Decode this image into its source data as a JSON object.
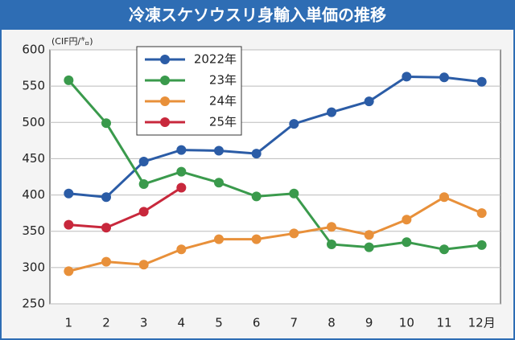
{
  "chart_data": {
    "type": "line",
    "title": "冷凍スケソウスリ身輸入単価の推移",
    "y_label": "(CIF円/㌔)",
    "categories": [
      "1",
      "2",
      "3",
      "4",
      "5",
      "6",
      "7",
      "8",
      "9",
      "10",
      "11",
      "12月"
    ],
    "series": [
      {
        "name": "2022年",
        "color": "#2b5ca6",
        "values": [
          402,
          397,
          446,
          462,
          461,
          457,
          498,
          514,
          529,
          563,
          562,
          556
        ]
      },
      {
        "name": "23年",
        "color": "#3a9a4c",
        "values": [
          558,
          499,
          415,
          432,
          417,
          398,
          402,
          332,
          328,
          335,
          325,
          331
        ]
      },
      {
        "name": "24年",
        "color": "#e8903a",
        "values": [
          295,
          308,
          304,
          325,
          339,
          339,
          347,
          356,
          345,
          366,
          397,
          375
        ]
      },
      {
        "name": "25年",
        "color": "#c8283c",
        "values": [
          359,
          355,
          377,
          410,
          null,
          null,
          null,
          null,
          null,
          null,
          null,
          null
        ]
      }
    ],
    "ylim": [
      250,
      600
    ],
    "yticks": [
      250,
      300,
      350,
      400,
      450,
      500,
      550,
      600
    ],
    "grid": true,
    "legend": "upper left"
  }
}
